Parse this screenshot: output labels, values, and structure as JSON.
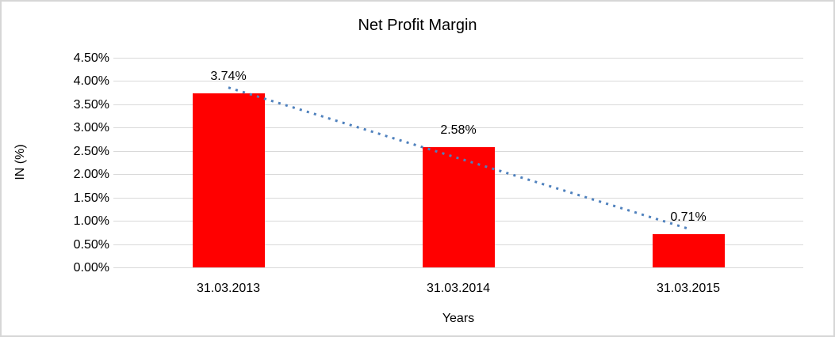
{
  "chart_data": {
    "type": "bar",
    "title": "Net Profit Margin",
    "xlabel": "Years",
    "ylabel": "IN (%)",
    "categories": [
      "31.03.2013",
      "31.03.2014",
      "31.03.2015"
    ],
    "values": [
      3.74,
      2.58,
      0.71
    ],
    "data_labels": [
      "3.74%",
      "2.58%",
      "0.71%"
    ],
    "y_ticks": [
      "4.50%",
      "4.00%",
      "3.50%",
      "3.00%",
      "2.50%",
      "2.00%",
      "1.50%",
      "1.00%",
      "0.50%",
      "0.00%"
    ],
    "ylim": [
      0,
      4.5
    ],
    "tick_step": 0.5,
    "grid": true,
    "legend_position": "none",
    "bar_color": "#ff0000",
    "trendline": {
      "type": "linear",
      "style": "dotted",
      "color": "#4f81bd",
      "start_value": 3.86,
      "end_value": 0.83
    },
    "colors": {
      "gridline": "#d9d9d9",
      "axis_line": "#d9d9d9",
      "text": "#000000",
      "background": "#ffffff",
      "border": "#d6d6d6"
    }
  }
}
